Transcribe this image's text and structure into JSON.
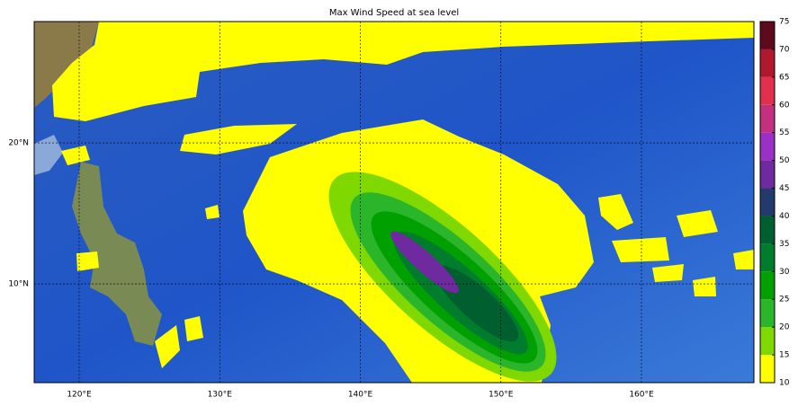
{
  "map": {
    "title": "Max Wind Speed at sea level",
    "xlim": [
      116.8,
      168
    ],
    "ylim": [
      3,
      28.6
    ],
    "xticks": [
      {
        "value": 120,
        "label": "120°E"
      },
      {
        "value": 130,
        "label": "130°E"
      },
      {
        "value": 140,
        "label": "140°E"
      },
      {
        "value": 150,
        "label": "150°E"
      },
      {
        "value": 160,
        "label": "160°E"
      }
    ],
    "yticks": [
      {
        "value": 10,
        "label": "10°N"
      },
      {
        "value": 20,
        "label": "20°N"
      }
    ],
    "grid": true,
    "colorbar": {
      "levels": [
        10,
        15,
        20,
        25,
        30,
        35,
        40,
        45,
        50,
        55,
        60,
        65,
        70,
        75
      ],
      "colors": [
        "#ffff00",
        "#7fd800",
        "#2ab52a",
        "#00a000",
        "#007d2c",
        "#005f2e",
        "#243a6c",
        "#6f2aa0",
        "#9a30c6",
        "#c33080",
        "#e0304e",
        "#b0182e",
        "#5e0a1e"
      ]
    }
  }
}
